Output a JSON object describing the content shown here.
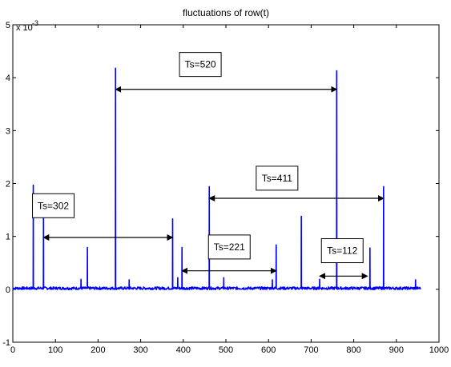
{
  "chart_data": {
    "type": "line",
    "title": "fluctuations of  row(t)",
    "xlabel": "",
    "ylabel": "",
    "xlim": [
      0,
      1000
    ],
    "ylim": [
      -0.001,
      0.005
    ],
    "y_exponent_label": "x 10",
    "y_exponent_power": "-3",
    "x_ticks": [
      0,
      100,
      200,
      300,
      400,
      500,
      600,
      700,
      800,
      900,
      1000
    ],
    "x_tick_labels": [
      "0",
      "100",
      "200",
      "300",
      "400",
      "500",
      "600",
      "700",
      "800",
      "900",
      "1000"
    ],
    "y_ticks": [
      -0.001,
      0,
      0.001,
      0.002,
      0.003,
      0.004,
      0.005
    ],
    "y_tick_labels": [
      "-1",
      "0",
      "1",
      "2",
      "3",
      "4",
      "5"
    ],
    "grid": false,
    "line_color": "#0000ff",
    "series": [
      {
        "x_range": [
          0,
          957
        ],
        "baseline": 2e-05,
        "peaks": [
          {
            "x": 48,
            "y": 0.00197
          },
          {
            "x": 72,
            "y": 0.00139
          },
          {
            "x": 160,
            "y": 0.00019
          },
          {
            "x": 175,
            "y": 0.00079
          },
          {
            "x": 241,
            "y": 0.00418
          },
          {
            "x": 273,
            "y": 0.00018
          },
          {
            "x": 375,
            "y": 0.00133
          },
          {
            "x": 387,
            "y": 0.00022
          },
          {
            "x": 397,
            "y": 0.00079
          },
          {
            "x": 461,
            "y": 0.00194
          },
          {
            "x": 495,
            "y": 0.00022
          },
          {
            "x": 609,
            "y": 0.00018
          },
          {
            "x": 618,
            "y": 0.00084
          },
          {
            "x": 677,
            "y": 0.00138
          },
          {
            "x": 720,
            "y": 0.00019
          },
          {
            "x": 760,
            "y": 0.00413
          },
          {
            "x": 838,
            "y": 0.00078
          },
          {
            "x": 870,
            "y": 0.00194
          },
          {
            "x": 945,
            "y": 0.00018
          }
        ]
      }
    ],
    "annotations": [
      {
        "label": "Ts=302",
        "from": 72,
        "to": 375,
        "y": 0.00098,
        "box_x": 95,
        "box_y": 0.00158
      },
      {
        "label": "Ts=520",
        "from": 241,
        "to": 760,
        "y": 0.00378,
        "box_x": 440,
        "box_y": 0.00425
      },
      {
        "label": "Ts=411",
        "from": 461,
        "to": 870,
        "y": 0.00172,
        "box_x": 620,
        "box_y": 0.0021
      },
      {
        "label": "Ts=221",
        "from": 397,
        "to": 618,
        "y": 0.00035,
        "box_x": 508,
        "box_y": 0.0008
      },
      {
        "label": "Ts=112",
        "from": 720,
        "to": 832,
        "y": 0.00025,
        "box_x": 773,
        "box_y": 0.00073
      }
    ]
  }
}
